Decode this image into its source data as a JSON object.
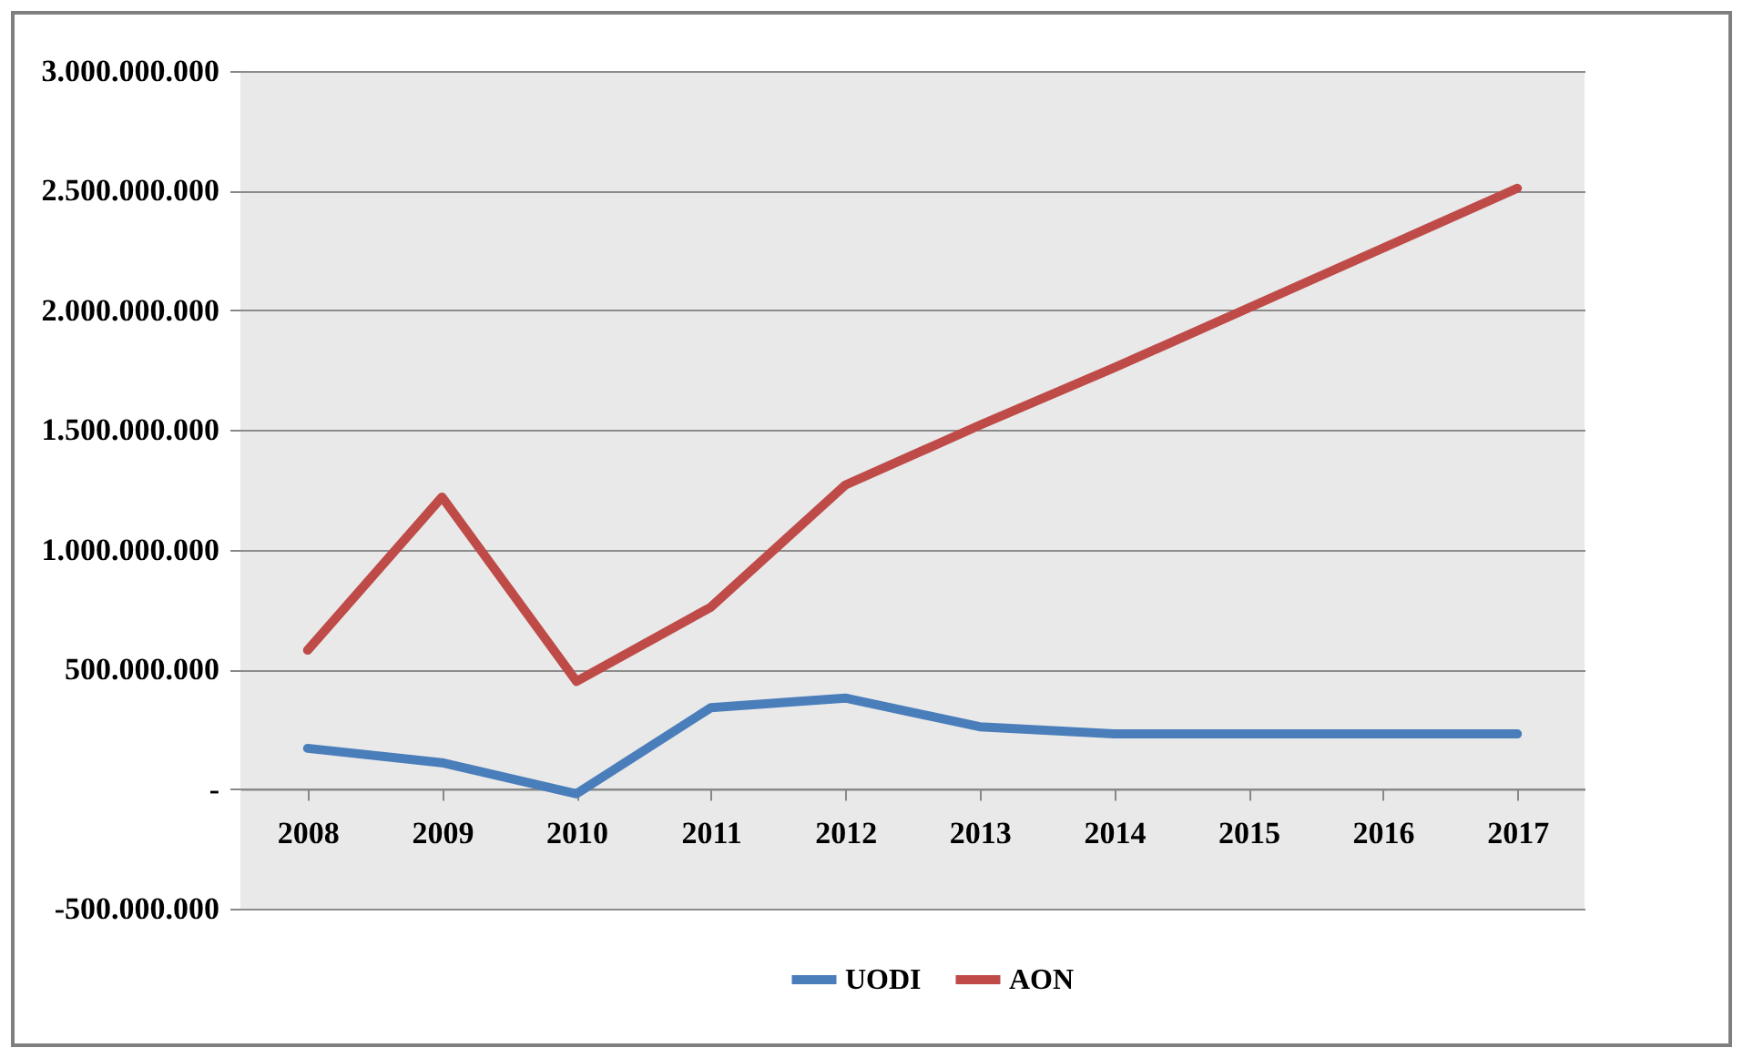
{
  "chart_data": {
    "type": "line",
    "categories": [
      "2008",
      "2009",
      "2010",
      "2011",
      "2012",
      "2013",
      "2014",
      "2015",
      "2016",
      "2017"
    ],
    "series": [
      {
        "name": "UODI",
        "color": "#4a7ebb",
        "values": [
          170000000,
          110000000,
          -20000000,
          340000000,
          380000000,
          260000000,
          230000000,
          230000000,
          230000000,
          230000000
        ]
      },
      {
        "name": "AON",
        "color": "#be4b48",
        "values": [
          580000000,
          1220000000,
          450000000,
          760000000,
          1270000000,
          1520000000,
          1760000000,
          2010000000,
          2260000000,
          2510000000
        ]
      }
    ],
    "ylim": [
      -500000000,
      3000000000
    ],
    "yticks": [
      {
        "value": -500000000,
        "label": "-500.000.000"
      },
      {
        "value": 0,
        "label": "-"
      },
      {
        "value": 500000000,
        "label": "500.000.000"
      },
      {
        "value": 1000000000,
        "label": "1.000.000.000"
      },
      {
        "value": 1500000000,
        "label": "1.500.000.000"
      },
      {
        "value": 2000000000,
        "label": "2.000.000.000"
      },
      {
        "value": 2500000000,
        "label": "2.500.000.000"
      },
      {
        "value": 3000000000,
        "label": "3.000.000.000"
      }
    ],
    "grid": "y",
    "legend": "bottom",
    "marker": "none",
    "line_style": "solid"
  }
}
